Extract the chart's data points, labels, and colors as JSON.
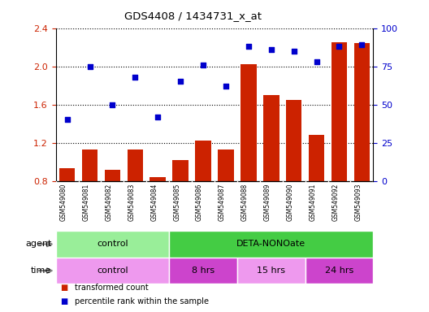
{
  "title": "GDS4408 / 1434731_x_at",
  "samples": [
    "GSM549080",
    "GSM549081",
    "GSM549082",
    "GSM549083",
    "GSM549084",
    "GSM549085",
    "GSM549086",
    "GSM549087",
    "GSM549088",
    "GSM549089",
    "GSM549090",
    "GSM549091",
    "GSM549092",
    "GSM549093"
  ],
  "transformed_count": [
    0.93,
    1.13,
    0.92,
    1.13,
    0.84,
    1.02,
    1.22,
    1.13,
    2.02,
    1.7,
    1.65,
    1.28,
    2.25,
    2.24
  ],
  "percentile_rank": [
    40,
    75,
    50,
    68,
    42,
    65,
    76,
    62,
    88,
    86,
    85,
    78,
    88,
    89
  ],
  "ylim_left": [
    0.8,
    2.4
  ],
  "ylim_right": [
    0,
    100
  ],
  "yticks_left": [
    0.8,
    1.2,
    1.6,
    2.0,
    2.4
  ],
  "yticks_right": [
    0,
    25,
    50,
    75,
    100
  ],
  "bar_color": "#cc2200",
  "dot_color": "#0000cc",
  "agent_groups": [
    {
      "label": "control",
      "start": 0,
      "end": 5,
      "color": "#99ee99"
    },
    {
      "label": "DETA-NONOate",
      "start": 5,
      "end": 14,
      "color": "#44cc44"
    }
  ],
  "time_groups": [
    {
      "label": "control",
      "start": 0,
      "end": 5,
      "color": "#ee99ee"
    },
    {
      "label": "8 hrs",
      "start": 5,
      "end": 8,
      "color": "#cc44cc"
    },
    {
      "label": "15 hrs",
      "start": 8,
      "end": 11,
      "color": "#ee99ee"
    },
    {
      "label": "24 hrs",
      "start": 11,
      "end": 14,
      "color": "#cc44cc"
    }
  ],
  "legend_bar_label": "transformed count",
  "legend_dot_label": "percentile rank within the sample",
  "background_color": "#ffffff",
  "grid_color": "#000000",
  "tick_color_left": "#cc2200",
  "tick_color_right": "#0000cc",
  "sample_bg_color": "#dddddd",
  "agent_label_color": "#444444",
  "time_label_color": "#444444"
}
